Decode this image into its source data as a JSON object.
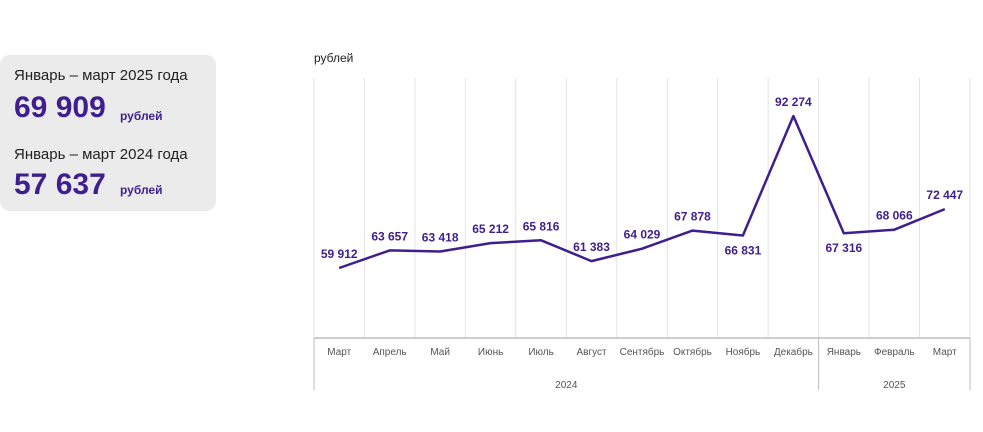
{
  "summary": {
    "current": {
      "period": "Январь – март 2025 года",
      "value": "69 909",
      "unit": "рублей"
    },
    "previous": {
      "period": "Январь – март 2024 года",
      "value": "57 637",
      "unit": "рублей"
    }
  },
  "colors": {
    "accent": "#3f1f8f",
    "panel": "#ebebeb",
    "grid": "#e3e3e3"
  },
  "chart_data": {
    "type": "line",
    "ylabel": "рублей",
    "categories": [
      "Март",
      "Апрель",
      "Май",
      "Июнь",
      "Июль",
      "Август",
      "Сентябрь",
      "Октябрь",
      "Ноябрь",
      "Декабрь",
      "Январь",
      "Февраль",
      "Март"
    ],
    "groups": [
      {
        "label": "2024",
        "count": 10
      },
      {
        "label": "2025",
        "count": 3
      }
    ],
    "values": [
      59912,
      63657,
      63418,
      65212,
      65816,
      61383,
      64029,
      67878,
      66831,
      92274,
      67316,
      68066,
      72447
    ],
    "value_labels": [
      "59 912",
      "63 657",
      "63 418",
      "65 212",
      "65 816",
      "61 383",
      "64 029",
      "67 878",
      "66 831",
      "92 274",
      "67 316",
      "68 066",
      "72 447"
    ],
    "label_position": [
      "above",
      "above",
      "above",
      "above",
      "above",
      "above",
      "above",
      "above",
      "below",
      "above",
      "below",
      "above",
      "above"
    ],
    "grid": true
  }
}
